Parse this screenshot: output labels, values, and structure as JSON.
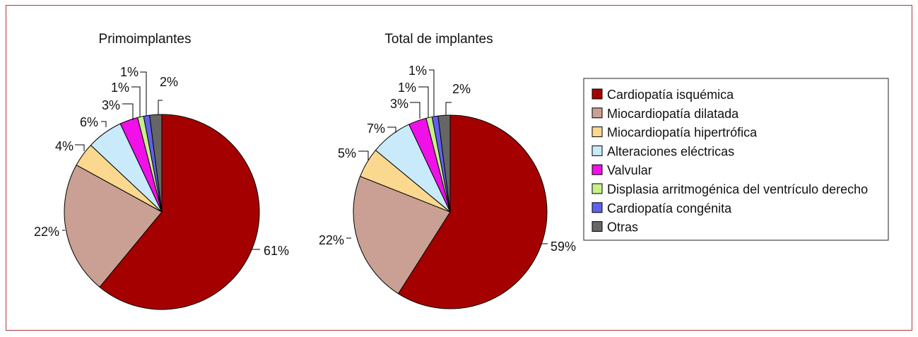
{
  "chart_data": [
    {
      "type": "pie",
      "title": "Primoimplantes",
      "categories": [
        "Cardiopatía isquémica",
        "Miocardiopatía dilatada",
        "Miocardiopatía hipertrófica",
        "Alteraciones eléctricas",
        "Valvular",
        "Displasia arritmogénica del ventrículo derecho",
        "Cardiopatía congénita",
        "Otras"
      ],
      "values": [
        61,
        22,
        4,
        6,
        3,
        1,
        1,
        2
      ],
      "labels": [
        "61%",
        "22%",
        "4%",
        "6%",
        "3%",
        "1%",
        "1%",
        "2%"
      ],
      "colors": [
        "#a50000",
        "#c9a093",
        "#fbd88f",
        "#c8eafb",
        "#f010e8",
        "#c8f088",
        "#6060ee",
        "#666666"
      ]
    },
    {
      "type": "pie",
      "title": "Total de implantes",
      "categories": [
        "Cardiopatía isquémica",
        "Miocardiopatía dilatada",
        "Miocardiopatía hipertrófica",
        "Alteraciones eléctricas",
        "Valvular",
        "Displasia arritmogénica del ventrículo derecho",
        "Cardiopatía congénita",
        "Otras"
      ],
      "values": [
        59,
        22,
        5,
        7,
        3,
        1,
        1,
        2
      ],
      "labels": [
        "59%",
        "22%",
        "5%",
        "7%",
        "3%",
        "1%",
        "1%",
        "2%"
      ],
      "colors": [
        "#a50000",
        "#c9a093",
        "#fbd88f",
        "#c8eafb",
        "#f010e8",
        "#c8f088",
        "#6060ee",
        "#666666"
      ]
    }
  ],
  "legend": {
    "placement": "right",
    "items": [
      {
        "label": "Cardiopatía isquémica",
        "color": "#a50000"
      },
      {
        "label": "Miocardiopatía dilatada",
        "color": "#c9a093"
      },
      {
        "label": "Miocardiopatía hipertrófica",
        "color": "#fbd88f"
      },
      {
        "label": "Alteraciones eléctricas",
        "color": "#c8eafb"
      },
      {
        "label": "Valvular",
        "color": "#f010e8"
      },
      {
        "label": "Displasia arritmogénica del ventrículo derecho",
        "color": "#c8f088"
      },
      {
        "label": "Cardiopatía congénita",
        "color": "#6060ee"
      },
      {
        "label": "Otras",
        "color": "#666666"
      }
    ]
  }
}
